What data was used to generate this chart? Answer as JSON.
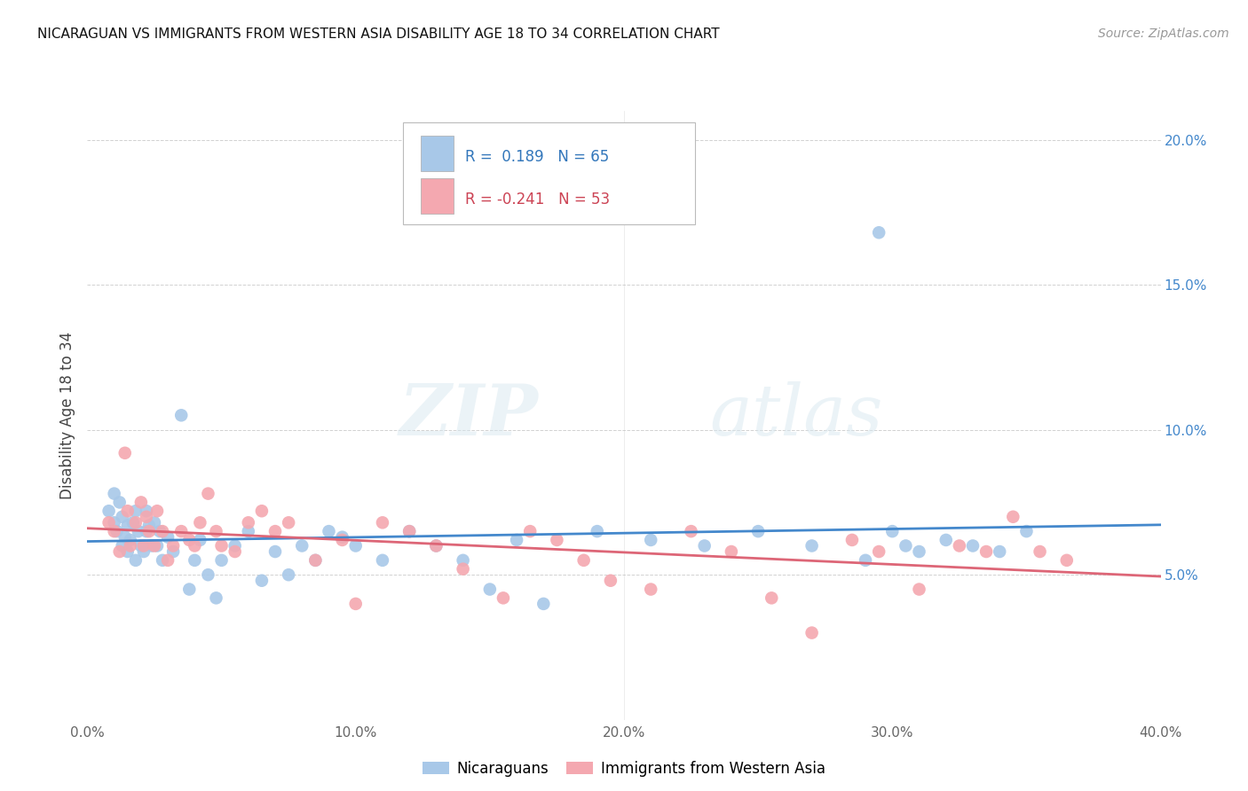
{
  "title": "NICARAGUAN VS IMMIGRANTS FROM WESTERN ASIA DISABILITY AGE 18 TO 34 CORRELATION CHART",
  "source": "Source: ZipAtlas.com",
  "ylabel": "Disability Age 18 to 34",
  "xlim": [
    0.0,
    0.4
  ],
  "ylim": [
    0.0,
    0.21
  ],
  "xticks": [
    0.0,
    0.1,
    0.2,
    0.3,
    0.4
  ],
  "xticklabels": [
    "0.0%",
    "10.0%",
    "20.0%",
    "30.0%",
    "40.0%"
  ],
  "yticks": [
    0.0,
    0.05,
    0.1,
    0.15,
    0.2
  ],
  "yticklabels_right": [
    "",
    "5.0%",
    "10.0%",
    "15.0%",
    "20.0%"
  ],
  "legend_labels": [
    "Nicaraguans",
    "Immigrants from Western Asia"
  ],
  "blue_color": "#a8c8e8",
  "pink_color": "#f4a8b0",
  "blue_line_color": "#4488cc",
  "pink_line_color": "#dd6677",
  "R_blue": 0.189,
  "N_blue": 65,
  "R_pink": -0.241,
  "N_pink": 53,
  "watermark_zip": "ZIP",
  "watermark_atlas": "atlas",
  "blue_x": [
    0.008,
    0.01,
    0.01,
    0.011,
    0.012,
    0.013,
    0.013,
    0.014,
    0.015,
    0.015,
    0.016,
    0.017,
    0.018,
    0.018,
    0.019,
    0.02,
    0.021,
    0.022,
    0.022,
    0.023,
    0.024,
    0.025,
    0.026,
    0.027,
    0.028,
    0.03,
    0.032,
    0.035,
    0.038,
    0.04,
    0.042,
    0.045,
    0.048,
    0.05,
    0.055,
    0.06,
    0.065,
    0.07,
    0.075,
    0.08,
    0.085,
    0.09,
    0.095,
    0.1,
    0.11,
    0.12,
    0.13,
    0.14,
    0.15,
    0.16,
    0.17,
    0.19,
    0.21,
    0.23,
    0.25,
    0.27,
    0.29,
    0.295,
    0.3,
    0.305,
    0.31,
    0.32,
    0.33,
    0.34,
    0.35
  ],
  "blue_y": [
    0.072,
    0.078,
    0.068,
    0.065,
    0.075,
    0.06,
    0.07,
    0.063,
    0.058,
    0.067,
    0.062,
    0.068,
    0.072,
    0.055,
    0.065,
    0.06,
    0.058,
    0.072,
    0.065,
    0.067,
    0.06,
    0.068,
    0.06,
    0.065,
    0.055,
    0.063,
    0.058,
    0.105,
    0.045,
    0.055,
    0.062,
    0.05,
    0.042,
    0.055,
    0.06,
    0.065,
    0.048,
    0.058,
    0.05,
    0.06,
    0.055,
    0.065,
    0.063,
    0.06,
    0.055,
    0.065,
    0.06,
    0.055,
    0.045,
    0.062,
    0.04,
    0.065,
    0.062,
    0.06,
    0.065,
    0.06,
    0.055,
    0.168,
    0.065,
    0.06,
    0.058,
    0.062,
    0.06,
    0.058,
    0.065
  ],
  "pink_x": [
    0.008,
    0.01,
    0.012,
    0.014,
    0.015,
    0.016,
    0.018,
    0.02,
    0.021,
    0.022,
    0.023,
    0.025,
    0.026,
    0.028,
    0.03,
    0.032,
    0.035,
    0.038,
    0.04,
    0.042,
    0.045,
    0.048,
    0.05,
    0.055,
    0.06,
    0.065,
    0.07,
    0.075,
    0.085,
    0.095,
    0.1,
    0.11,
    0.12,
    0.13,
    0.14,
    0.155,
    0.165,
    0.175,
    0.185,
    0.195,
    0.21,
    0.225,
    0.24,
    0.255,
    0.27,
    0.285,
    0.295,
    0.31,
    0.325,
    0.335,
    0.345,
    0.355,
    0.365
  ],
  "pink_y": [
    0.068,
    0.065,
    0.058,
    0.092,
    0.072,
    0.06,
    0.068,
    0.075,
    0.06,
    0.07,
    0.065,
    0.06,
    0.072,
    0.065,
    0.055,
    0.06,
    0.065,
    0.062,
    0.06,
    0.068,
    0.078,
    0.065,
    0.06,
    0.058,
    0.068,
    0.072,
    0.065,
    0.068,
    0.055,
    0.062,
    0.04,
    0.068,
    0.065,
    0.06,
    0.052,
    0.042,
    0.065,
    0.062,
    0.055,
    0.048,
    0.045,
    0.065,
    0.058,
    0.042,
    0.03,
    0.062,
    0.058,
    0.045,
    0.06,
    0.058,
    0.07,
    0.058,
    0.055
  ]
}
